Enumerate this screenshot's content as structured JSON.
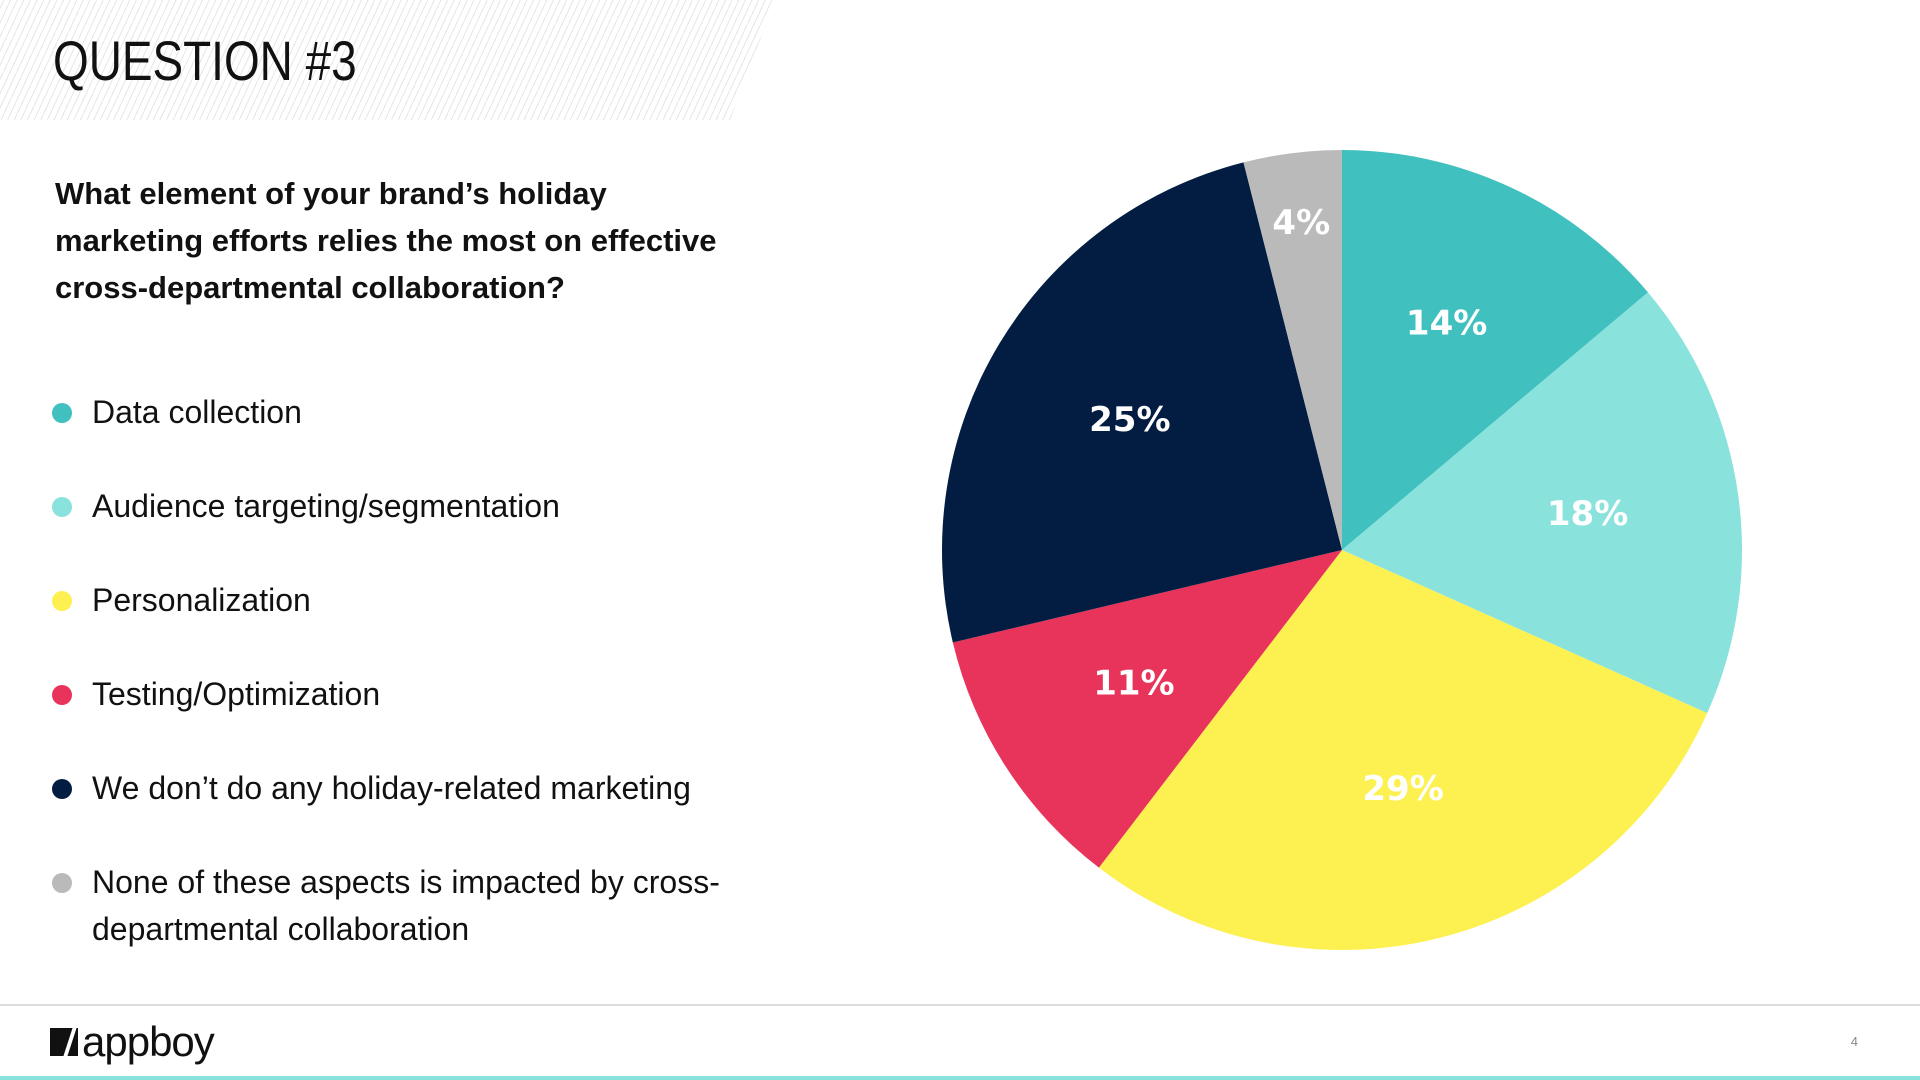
{
  "slide": {
    "title": "QUESTION #3",
    "question": "What element of your brand’s holiday marketing efforts relies the most on effective cross-departmental collaboration?",
    "page_number": "4",
    "logo_text": "appboy",
    "accent_color": "#8ae2dc"
  },
  "legend": [
    {
      "label": "Data collection",
      "color": "#40c0bf"
    },
    {
      "label": "Audience targeting/segmentation",
      "color": "#8ae2dc"
    },
    {
      "label": "Personalization",
      "color": "#fdf151"
    },
    {
      "label": "Testing/Optimization",
      "color": "#e8345a"
    },
    {
      "label": "We don’t do any holiday-related marketing",
      "color": "#031d42"
    },
    {
      "label": "None of these aspects is impacted by cross-departmental collaboration",
      "color": "#bababa"
    }
  ],
  "chart_data": {
    "type": "pie",
    "title": "",
    "start": "top, clockwise",
    "slices": [
      {
        "name": "Data collection",
        "value": 14,
        "label": "14%",
        "color": "#40c0bf"
      },
      {
        "name": "Audience targeting/segmentation",
        "value": 18,
        "label": "18%",
        "color": "#8ae2dc"
      },
      {
        "name": "Personalization",
        "value": 29,
        "label": "29%",
        "color": "#fdf151"
      },
      {
        "name": "Testing/Optimization",
        "value": 11,
        "label": "11%",
        "color": "#e8345a"
      },
      {
        "name": "We don’t do any holiday-related marketing",
        "value": 25,
        "label": "25%",
        "color": "#031d42"
      },
      {
        "name": "None of these aspects is impacted by cross-departmental collaboration",
        "value": 4,
        "label": "4%",
        "color": "#bababa"
      }
    ]
  }
}
